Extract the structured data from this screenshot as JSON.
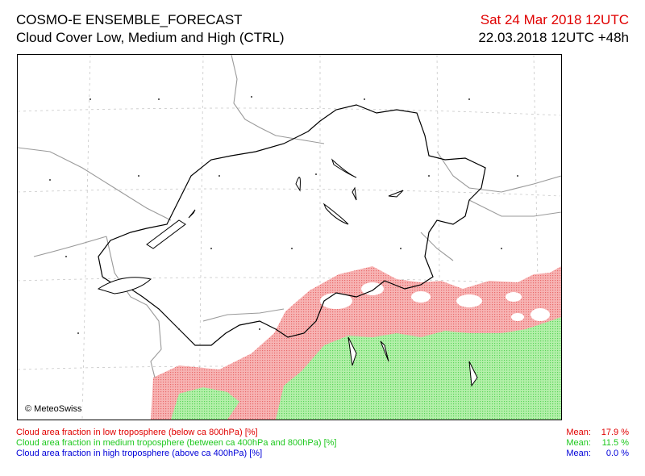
{
  "header": {
    "model": "COSMO-E ENSEMBLE_FORECAST",
    "product": "Cloud Cover Low, Medium and High (CTRL)",
    "valid_time": "Sat 24 Mar 2018 12UTC",
    "run_info": "22.03.2018 12UTC +48h"
  },
  "map": {
    "copyright": "© MeteoSwiss"
  },
  "legend": {
    "items": [
      {
        "label": "Cloud area fraction in low troposphere (below ca 800hPa) [%]",
        "mean_label": "Mean:",
        "mean_value": "17.9 %",
        "color": "#e00000"
      },
      {
        "label": "Cloud area fraction in medium troposphere (between ca 400hPa and 800hPa) [%]",
        "mean_label": "Mean:",
        "mean_value": "11.5 %",
        "color": "#1ec81e"
      },
      {
        "label": "Cloud area fraction in high troposphere (above ca 400hPa) [%]",
        "mean_label": "Mean:",
        "mean_value": "0.0 %",
        "color": "#0000d8"
      }
    ]
  },
  "colors": {
    "low_cloud_fill": "#f4a6a6",
    "medium_cloud_fill": "#a8eea0",
    "border_lines": "#9a9a9a",
    "swiss_border": "#000000",
    "grid": "#c8c8c8"
  }
}
